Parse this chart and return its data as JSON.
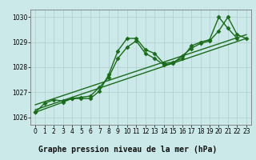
{
  "line1_x": [
    0,
    1,
    2,
    3,
    4,
    5,
    6,
    7,
    8,
    9,
    10,
    11,
    12,
    13,
    14,
    15,
    16,
    17,
    18,
    19,
    20,
    21,
    22
  ],
  "line1_y": [
    1026.2,
    1026.55,
    1026.7,
    1026.65,
    1026.75,
    1026.75,
    1026.75,
    1027.05,
    1027.7,
    1028.65,
    1029.15,
    1029.15,
    1028.7,
    1028.55,
    1028.15,
    1028.2,
    1028.35,
    1028.85,
    1029.0,
    1029.1,
    1030.0,
    1029.55,
    1029.15
  ],
  "line2_x": [
    0,
    3,
    4,
    5,
    6,
    7,
    8,
    9,
    10,
    11,
    12,
    13,
    14,
    15,
    16,
    17,
    18,
    19,
    20,
    21,
    22,
    23
  ],
  "line2_y": [
    1026.2,
    1026.6,
    1026.75,
    1026.8,
    1026.85,
    1027.2,
    1027.6,
    1028.35,
    1028.8,
    1029.05,
    1028.55,
    1028.35,
    1028.1,
    1028.15,
    1028.45,
    1028.75,
    1028.95,
    1029.05,
    1029.45,
    1030.0,
    1029.3,
    1029.15
  ],
  "trend1_x": [
    0,
    23
  ],
  "trend1_y": [
    1026.3,
    1029.15
  ],
  "trend2_x": [
    0,
    23
  ],
  "trend2_y": [
    1026.5,
    1029.3
  ],
  "xlim": [
    -0.5,
    23.5
  ],
  "ylim": [
    1025.7,
    1030.3
  ],
  "yticks": [
    1026,
    1027,
    1028,
    1029,
    1030
  ],
  "xticks": [
    0,
    1,
    2,
    3,
    4,
    5,
    6,
    7,
    8,
    9,
    10,
    11,
    12,
    13,
    14,
    15,
    16,
    17,
    18,
    19,
    20,
    21,
    22,
    23
  ],
  "xlabel": "Graphe pression niveau de la mer (hPa)",
  "bg_color": "#cce9e9",
  "grid_color": "#b0cccc",
  "line_color": "#1a6b1a",
  "marker": "D",
  "marker_size": 2.5,
  "linewidth": 1.0,
  "label_fontsize": 7.0,
  "tick_fontsize": 5.5
}
